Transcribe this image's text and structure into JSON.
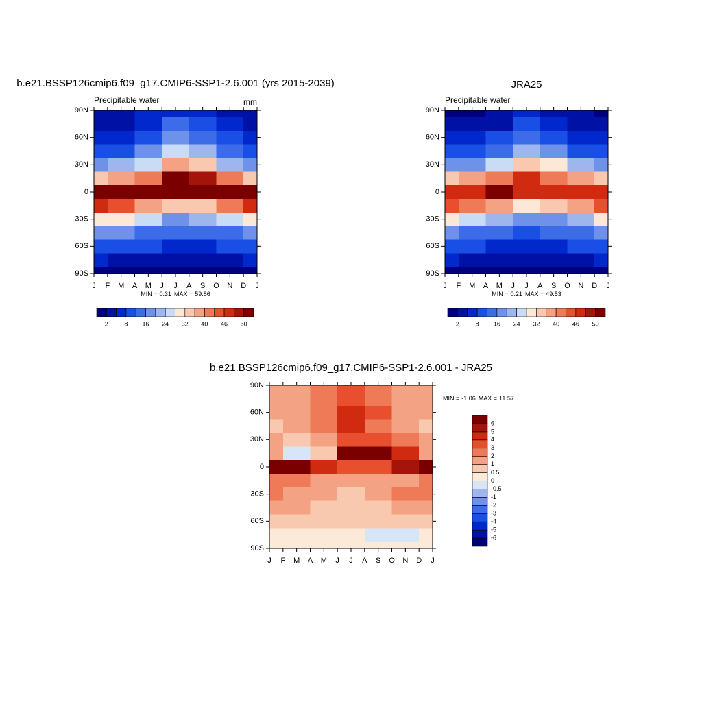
{
  "chart_data": [
    {
      "type": "contour",
      "title": "b.e21.BSSP126cmip6.f09_g17.CMIP6-SSP1-2.6.001 (yrs 2015-2039)",
      "subtitle": "Precipitable water",
      "units": "mm",
      "stats_min_label": "MIN =",
      "min": 0.31,
      "stats_max_label": "MAX =",
      "max": 59.86,
      "x": [
        0,
        2,
        4,
        6,
        8,
        10,
        12
      ],
      "lat": [
        90,
        75,
        60,
        45,
        30,
        15,
        0,
        -15,
        -30,
        -45,
        -60,
        -75,
        -90
      ],
      "xlim": [
        0,
        12
      ],
      "ylim": [
        -90,
        90
      ],
      "xticks": [
        {
          "value": 0,
          "label": "J"
        },
        {
          "value": 1,
          "label": "F"
        },
        {
          "value": 2,
          "label": "M"
        },
        {
          "value": 3,
          "label": "A"
        },
        {
          "value": 4,
          "label": "M"
        },
        {
          "value": 5,
          "label": "J"
        },
        {
          "value": 6,
          "label": "J"
        },
        {
          "value": 7,
          "label": "A"
        },
        {
          "value": 8,
          "label": "S"
        },
        {
          "value": 9,
          "label": "O"
        },
        {
          "value": 10,
          "label": "N"
        },
        {
          "value": 11,
          "label": "D"
        },
        {
          "value": 12,
          "label": "J"
        }
      ],
      "yticks": [
        {
          "value": 90,
          "label": "90N"
        },
        {
          "value": 60,
          "label": "60N"
        },
        {
          "value": 30,
          "label": "30N"
        },
        0,
        {
          "value": -30,
          "label": "30S"
        },
        {
          "value": -60,
          "label": "60S"
        },
        {
          "value": -90,
          "label": "90S"
        }
      ],
      "z": [
        [
          2,
          2,
          4,
          7,
          5,
          3,
          2
        ],
        [
          3,
          3,
          6,
          12,
          9,
          5,
          3
        ],
        [
          6,
          6,
          10,
          18,
          14,
          8,
          6
        ],
        [
          10,
          11,
          16,
          26,
          21,
          13,
          10
        ],
        [
          18,
          20,
          26,
          38,
          32,
          22,
          18
        ],
        [
          34,
          36,
          42,
          52,
          48,
          40,
          34
        ],
        [
          52,
          52,
          54,
          50,
          50,
          52,
          52
        ],
        [
          46,
          44,
          38,
          32,
          34,
          40,
          46
        ],
        [
          30,
          28,
          24,
          18,
          20,
          24,
          30
        ],
        [
          18,
          16,
          14,
          12,
          13,
          15,
          18
        ],
        [
          10,
          9,
          8,
          7,
          7,
          9,
          10
        ],
        [
          4,
          3,
          3,
          2,
          2,
          3,
          4
        ],
        [
          1,
          1,
          1,
          1,
          1,
          1,
          1
        ]
      ],
      "colorbar": {
        "orientation": "horizontal",
        "label_step": 2,
        "levels": [
          2,
          4,
          8,
          12,
          16,
          20,
          24,
          28,
          32,
          36,
          40,
          44,
          46,
          48,
          50
        ],
        "colors": [
          "#00007f",
          "#0012a6",
          "#0028cc",
          "#1a4fe6",
          "#3d6ce8",
          "#6e92ea",
          "#9db7ee",
          "#c9dcf5",
          "#fce8d6",
          "#f8c9ae",
          "#f3a283",
          "#ee7a58",
          "#e84f2e",
          "#d02b10",
          "#a41408",
          "#7a0000"
        ]
      }
    },
    {
      "type": "contour",
      "title": "JRA25",
      "subtitle": "Precipitable water",
      "stats_min_label": "MIN =",
      "min": 0.21,
      "stats_max_label": "MAX =",
      "max": 49.53,
      "x": [
        0,
        2,
        4,
        6,
        8,
        10,
        12
      ],
      "lat": [
        90,
        75,
        60,
        45,
        30,
        15,
        0,
        -15,
        -30,
        -45,
        -60,
        -75,
        -90
      ],
      "xlim": [
        0,
        12
      ],
      "ylim": [
        -90,
        90
      ],
      "xticks": [
        {
          "value": 0,
          "label": "J"
        },
        {
          "value": 1,
          "label": "F"
        },
        {
          "value": 2,
          "label": "M"
        },
        {
          "value": 3,
          "label": "A"
        },
        {
          "value": 4,
          "label": "M"
        },
        {
          "value": 5,
          "label": "J"
        },
        {
          "value": 6,
          "label": "J"
        },
        {
          "value": 7,
          "label": "A"
        },
        {
          "value": 8,
          "label": "S"
        },
        {
          "value": 9,
          "label": "O"
        },
        {
          "value": 10,
          "label": "N"
        },
        {
          "value": 11,
          "label": "D"
        },
        {
          "value": 12,
          "label": "J"
        }
      ],
      "yticks": [
        {
          "value": 90,
          "label": "90N"
        },
        {
          "value": 60,
          "label": "60N"
        },
        {
          "value": 30,
          "label": "30N"
        },
        0,
        {
          "value": -30,
          "label": "30S"
        },
        {
          "value": -60,
          "label": "60S"
        },
        {
          "value": -90,
          "label": "90S"
        }
      ],
      "z": [
        [
          1,
          1,
          2,
          4,
          3,
          2,
          1
        ],
        [
          2,
          2,
          3,
          9,
          7,
          3,
          2
        ],
        [
          5,
          5,
          8,
          14,
          11,
          6,
          5
        ],
        [
          9,
          10,
          13,
          22,
          18,
          11,
          9
        ],
        [
          17,
          19,
          24,
          35,
          29,
          20,
          17
        ],
        [
          33,
          36,
          41,
          46,
          42,
          36,
          33
        ],
        [
          46,
          46,
          50,
          47,
          47,
          47,
          46
        ],
        [
          44,
          42,
          37,
          31,
          33,
          38,
          44
        ],
        [
          28,
          26,
          23,
          17,
          19,
          22,
          28
        ],
        [
          16,
          15,
          13,
          11,
          12,
          14,
          16
        ],
        [
          9,
          8,
          7,
          6,
          6,
          8,
          9
        ],
        [
          4,
          3,
          3,
          2,
          2,
          3,
          4
        ],
        [
          1,
          1,
          1,
          1,
          1,
          1,
          1
        ]
      ],
      "colorbar": {
        "orientation": "horizontal",
        "label_step": 2,
        "levels": [
          2,
          4,
          8,
          12,
          16,
          20,
          24,
          28,
          32,
          36,
          40,
          44,
          46,
          48,
          50
        ],
        "colors": [
          "#00007f",
          "#0012a6",
          "#0028cc",
          "#1a4fe6",
          "#3d6ce8",
          "#6e92ea",
          "#9db7ee",
          "#c9dcf5",
          "#fce8d6",
          "#f8c9ae",
          "#f3a283",
          "#ee7a58",
          "#e84f2e",
          "#d02b10",
          "#a41408",
          "#7a0000"
        ]
      }
    },
    {
      "type": "contour",
      "title": "b.e21.BSSP126cmip6.f09_g17.CMIP6-SSP1-2.6.001 - JRA25",
      "stats_min_label": "MIN =",
      "min": -1.06,
      "stats_max_label": "MAX =",
      "max": 11.57,
      "x": [
        0,
        2,
        4,
        6,
        8,
        10,
        12
      ],
      "lat": [
        90,
        75,
        60,
        45,
        30,
        15,
        0,
        -15,
        -30,
        -45,
        -60,
        -75,
        -90
      ],
      "xlim": [
        0,
        12
      ],
      "ylim": [
        -90,
        90
      ],
      "xticks": [
        {
          "value": 0,
          "label": "J"
        },
        {
          "value": 1,
          "label": "F"
        },
        {
          "value": 2,
          "label": "M"
        },
        {
          "value": 3,
          "label": "A"
        },
        {
          "value": 4,
          "label": "M"
        },
        {
          "value": 5,
          "label": "J"
        },
        {
          "value": 6,
          "label": "J"
        },
        {
          "value": 7,
          "label": "A"
        },
        {
          "value": 8,
          "label": "S"
        },
        {
          "value": 9,
          "label": "O"
        },
        {
          "value": 10,
          "label": "N"
        },
        {
          "value": 11,
          "label": "D"
        },
        {
          "value": 12,
          "label": "J"
        }
      ],
      "yticks": [
        {
          "value": 90,
          "label": "90N"
        },
        {
          "value": 60,
          "label": "60N"
        },
        {
          "value": 30,
          "label": "30N"
        },
        0,
        {
          "value": -30,
          "label": "30S"
        },
        {
          "value": -60,
          "label": "60S"
        },
        {
          "value": -90,
          "label": "90S"
        }
      ],
      "z": [
        [
          1,
          1.5,
          2,
          3,
          2,
          1.5,
          1
        ],
        [
          1,
          1.5,
          2.5,
          3,
          2.5,
          1.5,
          1
        ],
        [
          1,
          1.5,
          2.5,
          4,
          3,
          1.5,
          1
        ],
        [
          0.8,
          1.5,
          2.5,
          4,
          2.5,
          1.5,
          0.8
        ],
        [
          1,
          0.8,
          1.5,
          3,
          3,
          2,
          1
        ],
        [
          1,
          -0.5,
          0.8,
          6,
          6,
          4,
          1
        ],
        [
          6,
          6,
          4,
          3,
          3,
          5,
          6
        ],
        [
          2,
          2,
          1.5,
          1,
          1,
          1.5,
          2
        ],
        [
          2,
          1.5,
          1,
          0.8,
          1,
          2,
          2
        ],
        [
          1.5,
          1,
          0.8,
          0.8,
          0.8,
          1,
          1.5
        ],
        [
          0.8,
          0.8,
          0.8,
          0.8,
          0.8,
          0.8,
          0.8
        ],
        [
          0.3,
          0.3,
          0.3,
          0.3,
          -0.2,
          -0.2,
          0.3
        ],
        [
          0.3,
          0.3,
          0.3,
          0.3,
          0.3,
          0.3,
          0.3
        ]
      ],
      "colorbar": {
        "orientation": "vertical",
        "label_step": 1,
        "levels": [
          -6,
          -5,
          -4,
          -3,
          -2,
          -1,
          -0.5,
          0,
          0.5,
          1,
          2,
          3,
          4,
          5,
          6
        ],
        "colors": [
          "#00007f",
          "#0012a6",
          "#0028cc",
          "#1a4fe6",
          "#3d6ce8",
          "#6e92ea",
          "#9db7ee",
          "#d6e6f7",
          "#fde9d7",
          "#f8c9ae",
          "#f3a283",
          "#ee7a58",
          "#e84f2e",
          "#d02b10",
          "#a41408",
          "#7a0000"
        ]
      }
    }
  ]
}
